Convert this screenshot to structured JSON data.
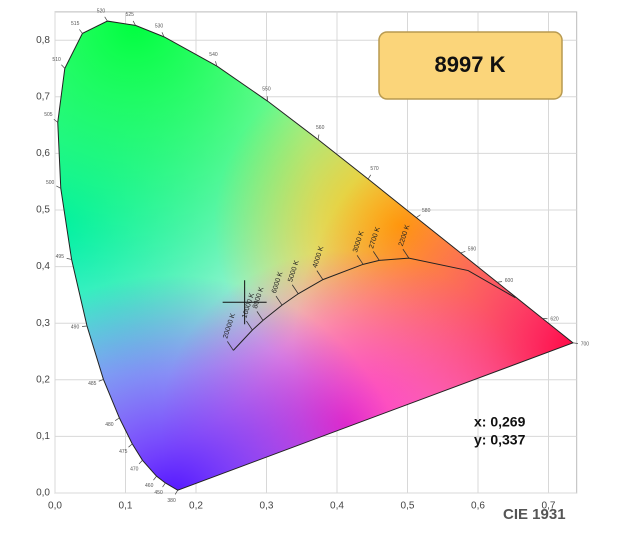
{
  "chart_data": {
    "type": "chromaticity",
    "title": "8997 K",
    "caption": "CIE 1931",
    "xlim": [
      0,
      0.74
    ],
    "ylim": [
      0,
      0.85
    ],
    "xticks": [
      {
        "value": 0,
        "label": "0,0"
      },
      {
        "value": 0.1,
        "label": "0,1"
      },
      {
        "value": 0.2,
        "label": "0,2"
      },
      {
        "value": 0.3,
        "label": "0,3"
      },
      {
        "value": 0.4,
        "label": "0,4"
      },
      {
        "value": 0.5,
        "label": "0,5"
      },
      {
        "value": 0.6,
        "label": "0,6"
      },
      {
        "value": 0.7,
        "label": "0,7"
      }
    ],
    "yticks": [
      {
        "value": 0,
        "label": "0,0"
      },
      {
        "value": 0.1,
        "label": "0,1"
      },
      {
        "value": 0.2,
        "label": "0,2"
      },
      {
        "value": 0.3,
        "label": "0,3"
      },
      {
        "value": 0.4,
        "label": "0,4"
      },
      {
        "value": 0.5,
        "label": "0,5"
      },
      {
        "value": 0.6,
        "label": "0,6"
      },
      {
        "value": 0.7,
        "label": "0,7"
      },
      {
        "value": 0.8,
        "label": "0,8"
      }
    ],
    "grid": true,
    "spectral_locus": {
      "wavelengths": [
        380,
        450,
        460,
        470,
        475,
        480,
        485,
        490,
        495,
        500,
        505,
        510,
        515,
        520,
        525,
        530,
        540,
        550,
        560,
        570,
        580,
        590,
        600,
        620,
        700
      ],
      "x": [
        0.1741,
        0.1566,
        0.144,
        0.1241,
        0.1096,
        0.0913,
        0.0687,
        0.0454,
        0.0235,
        0.0082,
        0.0039,
        0.0139,
        0.0389,
        0.0743,
        0.1142,
        0.1547,
        0.2296,
        0.3016,
        0.3731,
        0.4441,
        0.5125,
        0.5752,
        0.627,
        0.6915,
        0.7347
      ],
      "y": [
        0.005,
        0.0177,
        0.0297,
        0.0578,
        0.0868,
        0.1327,
        0.2007,
        0.295,
        0.4127,
        0.5384,
        0.6548,
        0.7502,
        0.812,
        0.8338,
        0.8262,
        0.8059,
        0.7543,
        0.6923,
        0.6245,
        0.5547,
        0.4866,
        0.4242,
        0.3725,
        0.3083,
        0.2653
      ]
    },
    "planckian_locus": {
      "labels": [
        null,
        null,
        "2200 K",
        "2700 K",
        "3000 K",
        "4000 K",
        "5000 K",
        "6000 K",
        "8000 K",
        "10000 K",
        "20000 K"
      ],
      "x": [
        0.653,
        0.586,
        0.502,
        0.46,
        0.437,
        0.38,
        0.345,
        0.322,
        0.295,
        0.28,
        0.253
      ],
      "y": [
        0.345,
        0.393,
        0.415,
        0.411,
        0.404,
        0.377,
        0.352,
        0.332,
        0.305,
        0.288,
        0.252
      ]
    },
    "point": {
      "x": 0.269,
      "y": 0.337,
      "x_label": "x: 0,269",
      "y_label": "y: 0,337"
    }
  }
}
